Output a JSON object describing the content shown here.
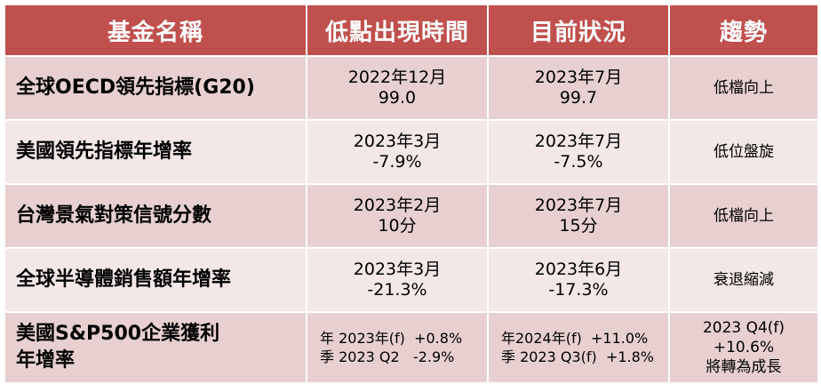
{
  "header": {
    "col_name": "基金名稱",
    "col_low": "低點出現時間",
    "col_now": "目前狀況",
    "col_trend": "趨勢"
  },
  "rows": [
    {
      "name_lines": [
        "全球OECD領先指標(G20)"
      ],
      "low_lines": [
        "2022年12月",
        "99.0"
      ],
      "now_lines": [
        "2023年7月",
        "99.7"
      ],
      "trend_lines": [
        "低檔向上"
      ]
    },
    {
      "name_lines": [
        "美國領先指標年增率"
      ],
      "low_lines": [
        "2023年3月",
        "-7.9%"
      ],
      "now_lines": [
        "2023年7月",
        "-7.5%"
      ],
      "trend_lines": [
        "低位盤旋"
      ]
    },
    {
      "name_lines": [
        "台灣景氣對策信號分數"
      ],
      "low_lines": [
        "2023年2月",
        "10分"
      ],
      "now_lines": [
        "2023年7月",
        "15分"
      ],
      "trend_lines": [
        "低檔向上"
      ]
    },
    {
      "name_lines": [
        "全球半導體銷售額年增率"
      ],
      "low_lines": [
        "2023年3月",
        "-21.3%"
      ],
      "now_lines": [
        "2023年6月",
        "-17.3%"
      ],
      "trend_lines": [
        "衰退縮減"
      ]
    },
    {
      "name_lines": [
        "美國S&P500企業獲利",
        "年增率"
      ],
      "low_lines": [
        "年 2023年(f)  +0.8%",
        "季 2023 Q2   -2.9%"
      ],
      "now_lines": [
        "年2024年(f)  +11.0%",
        "季 2023 Q3(f)  +1.8%"
      ],
      "trend_lines": [
        "2023 Q4(f)",
        "+10.6%",
        "將轉為成長"
      ]
    }
  ]
}
